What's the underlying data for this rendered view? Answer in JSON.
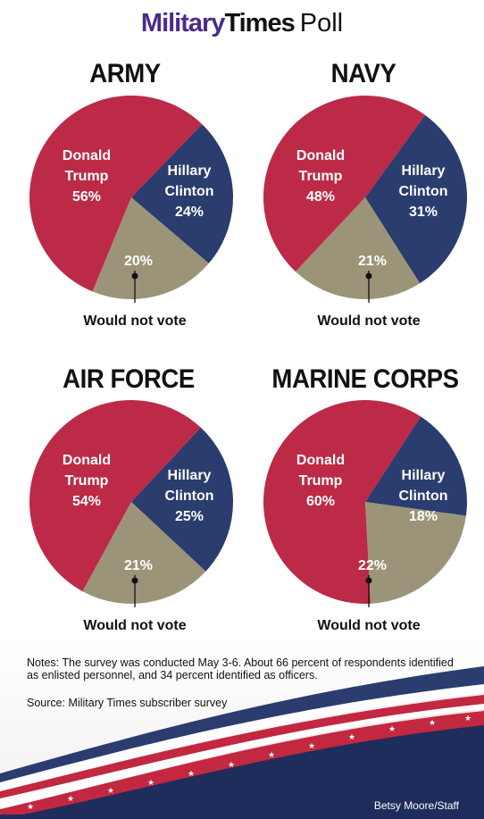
{
  "header": {
    "brand_part1": "Military",
    "brand_part2": "Times",
    "poll_word": "Poll"
  },
  "colors": {
    "trump": "#bc2a47",
    "clinton": "#2b3c6e",
    "not_vote": "#9c9479",
    "brand": "#4a2a8a"
  },
  "chart_data": [
    {
      "type": "pie",
      "title": "ARMY",
      "slices": [
        {
          "name": "Donald Trump",
          "label_lines": [
            "Donald",
            "Trump",
            "56%"
          ],
          "value": 56
        },
        {
          "name": "Hillary Clinton",
          "label_lines": [
            "Hillary",
            "Clinton",
            "24%"
          ],
          "value": 24
        },
        {
          "name": "Would not vote",
          "label_lines": [
            "20%"
          ],
          "value": 20
        }
      ],
      "annotation": "Would not vote"
    },
    {
      "type": "pie",
      "title": "NAVY",
      "slices": [
        {
          "name": "Donald Trump",
          "label_lines": [
            "Donald",
            "Trump",
            "48%"
          ],
          "value": 48
        },
        {
          "name": "Hillary Clinton",
          "label_lines": [
            "Hillary",
            "Clinton",
            "31%"
          ],
          "value": 31
        },
        {
          "name": "Would not vote",
          "label_lines": [
            "21%"
          ],
          "value": 21
        }
      ],
      "annotation": "Would not vote"
    },
    {
      "type": "pie",
      "title": "AIR FORCE",
      "slices": [
        {
          "name": "Donald Trump",
          "label_lines": [
            "Donald",
            "Trump",
            "54%"
          ],
          "value": 54
        },
        {
          "name": "Hillary Clinton",
          "label_lines": [
            "Hillary",
            "Clinton",
            "25%"
          ],
          "value": 25
        },
        {
          "name": "Would not vote",
          "label_lines": [
            "21%"
          ],
          "value": 21
        }
      ],
      "annotation": "Would not vote"
    },
    {
      "type": "pie",
      "title": "MARINE CORPS",
      "slices": [
        {
          "name": "Donald Trump",
          "label_lines": [
            "Donald",
            "Trump",
            "60%"
          ],
          "value": 60
        },
        {
          "name": "Hillary Clinton",
          "label_lines": [
            "Hillary",
            "Clinton",
            "18%"
          ],
          "value": 18
        },
        {
          "name": "Would not vote",
          "label_lines": [
            "22%"
          ],
          "value": 22
        }
      ],
      "annotation": "Would not vote"
    }
  ],
  "notes": "Notes: The survey was conducted May 3-6. About 66 percent of respondents identified as enlisted personnel, and 34 percent identified as officers.",
  "source": "Source: Military Times subscriber survey",
  "credit": "Betsy Moore/Staff"
}
